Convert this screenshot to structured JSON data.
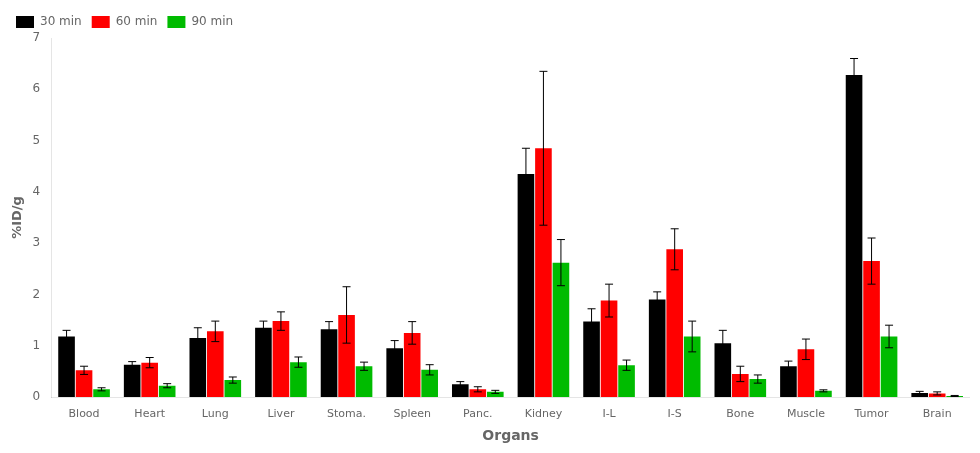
{
  "chart_data": {
    "type": "bar",
    "categories": [
      "Blood",
      "Heart",
      "Lung",
      "Liver",
      "Stoma.",
      "Spleen",
      "Panc.",
      "Kidney",
      "I-L",
      "I-S",
      "Bone",
      "Muscle",
      "Tumor",
      "Brain"
    ],
    "series": [
      {
        "name": "30 min",
        "color": "#000000",
        "values": [
          1.18,
          0.63,
          1.15,
          1.35,
          1.32,
          0.95,
          0.25,
          4.35,
          1.47,
          1.9,
          1.05,
          0.6,
          6.28,
          0.08
        ],
        "errors": [
          0.12,
          0.06,
          0.2,
          0.13,
          0.15,
          0.15,
          0.05,
          0.5,
          0.25,
          0.15,
          0.25,
          0.1,
          0.32,
          0.03
        ]
      },
      {
        "name": "60 min",
        "color": "#ff0000",
        "values": [
          0.52,
          0.67,
          1.28,
          1.48,
          1.6,
          1.25,
          0.15,
          4.85,
          1.88,
          2.88,
          0.45,
          0.93,
          2.65,
          0.07
        ],
        "errors": [
          0.08,
          0.1,
          0.2,
          0.18,
          0.55,
          0.22,
          0.05,
          1.5,
          0.32,
          0.4,
          0.15,
          0.2,
          0.45,
          0.03
        ]
      },
      {
        "name": "90 min",
        "color": "#00bb00",
        "values": [
          0.15,
          0.22,
          0.33,
          0.68,
          0.6,
          0.53,
          0.1,
          2.62,
          0.62,
          1.18,
          0.35,
          0.12,
          1.18,
          0.02
        ],
        "errors": [
          0.03,
          0.04,
          0.06,
          0.1,
          0.08,
          0.1,
          0.03,
          0.45,
          0.1,
          0.3,
          0.08,
          0.02,
          0.22,
          0.01
        ]
      }
    ],
    "xlabel": "Organs",
    "ylabel": "%ID/g",
    "ylim": [
      0,
      7
    ],
    "yticks": [
      0,
      1,
      2,
      3,
      4,
      5,
      6,
      7
    ],
    "grid": false,
    "legend": "upper left"
  }
}
